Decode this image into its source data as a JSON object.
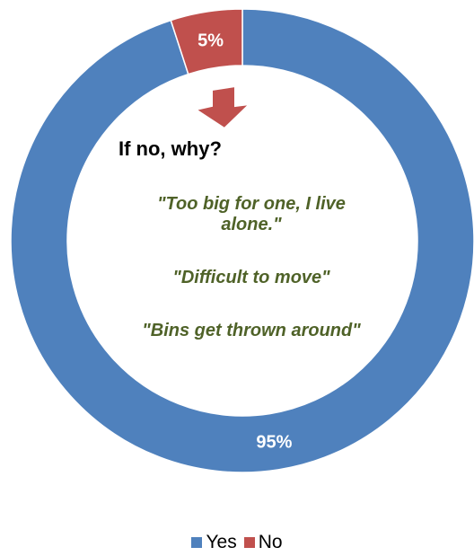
{
  "chart_data": {
    "type": "pie",
    "variant": "donut",
    "categories": [
      "Yes",
      "No"
    ],
    "values": [
      95,
      5
    ],
    "value_labels": [
      "95%",
      "5%"
    ],
    "colors": {
      "Yes": "#4f81bd",
      "No": "#c0504d"
    },
    "legend_placement": "bottom",
    "title": ""
  },
  "center_text": {
    "heading": "If no, why?",
    "quotes": [
      "\"Too big for one, I live alone.\"",
      "\"Difficult to move\"",
      "\"Bins get thrown around\""
    ],
    "quote_color": "#4f6228"
  },
  "legend": {
    "items": [
      {
        "label": "Yes",
        "color": "#4f81bd"
      },
      {
        "label": "No",
        "color": "#c0504d"
      }
    ]
  },
  "annotation": {
    "arrow": "arrow-down-icon",
    "color": "#c0504d"
  }
}
